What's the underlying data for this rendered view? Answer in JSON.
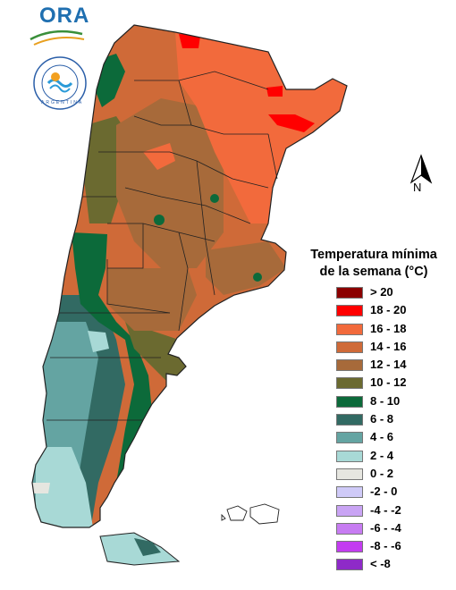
{
  "logo": {
    "brand_text": "ORA"
  },
  "seal": {
    "label": "ARGENTINA"
  },
  "north_arrow": {
    "label": "N"
  },
  "legend": {
    "title_line1": "Temperatura mínima",
    "title_line2": "de la semana (°C)",
    "items": [
      {
        "label": "> 20",
        "color": "#8b0000"
      },
      {
        "label": "18 - 20",
        "color": "#ff0000"
      },
      {
        "label": "16 - 18",
        "color": "#f26a3c"
      },
      {
        "label": "14 - 16",
        "color": "#cf6a38"
      },
      {
        "label": "12 - 14",
        "color": "#a76a3a"
      },
      {
        "label": "10 - 12",
        "color": "#6b6a30"
      },
      {
        "label": "8 - 10",
        "color": "#0c6a3a"
      },
      {
        "label": "6 - 8",
        "color": "#326a63"
      },
      {
        "label": "4 - 6",
        "color": "#64a4a2"
      },
      {
        "label": "2 - 4",
        "color": "#a8d9d6"
      },
      {
        "label": "0 - 2",
        "color": "#e6e6e0"
      },
      {
        "label": "-2 - 0",
        "color": "#cfcaf8"
      },
      {
        "label": "-4 - -2",
        "color": "#c9a4f4"
      },
      {
        "label": "-6 - -4",
        "color": "#c77cf2"
      },
      {
        "label": "-8 - -6",
        "color": "#c33cf0"
      },
      {
        "label": "< -8",
        "color": "#8e2ac8"
      }
    ]
  }
}
